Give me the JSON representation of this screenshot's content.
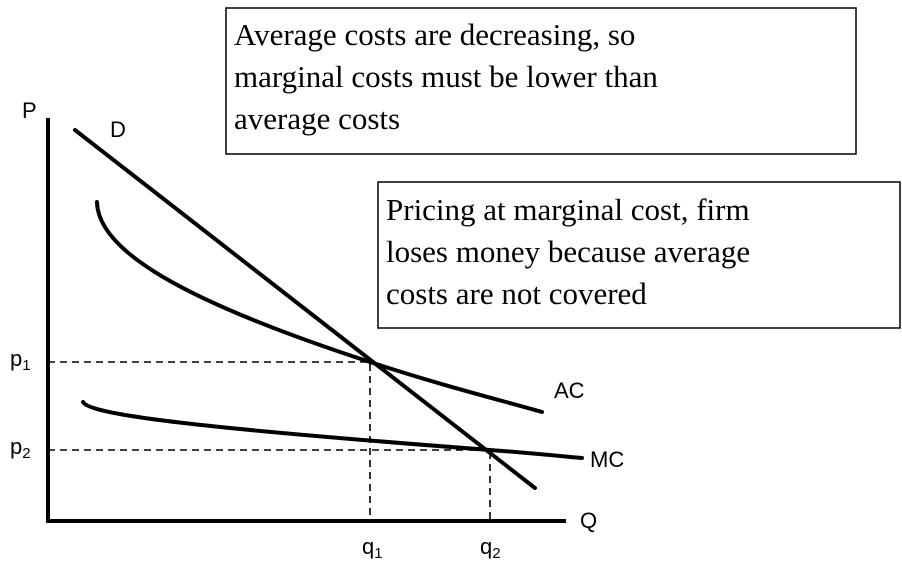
{
  "axes": {
    "y_label": "P",
    "x_label": "Q"
  },
  "curves": {
    "demand": "D",
    "average_cost": "AC",
    "marginal_cost": "MC"
  },
  "price_levels": [
    {
      "base": "p",
      "sub": "1"
    },
    {
      "base": "p",
      "sub": "2"
    }
  ],
  "quantity_levels": [
    {
      "base": "q",
      "sub": "1"
    },
    {
      "base": "q",
      "sub": "2"
    }
  ],
  "callouts": [
    {
      "lines": [
        "Average costs are decreasing, so",
        "marginal costs must be lower than",
        "average costs"
      ]
    },
    {
      "lines": [
        "Pricing at marginal cost, firm",
        "loses money because average",
        "costs are not covered"
      ]
    }
  ]
}
